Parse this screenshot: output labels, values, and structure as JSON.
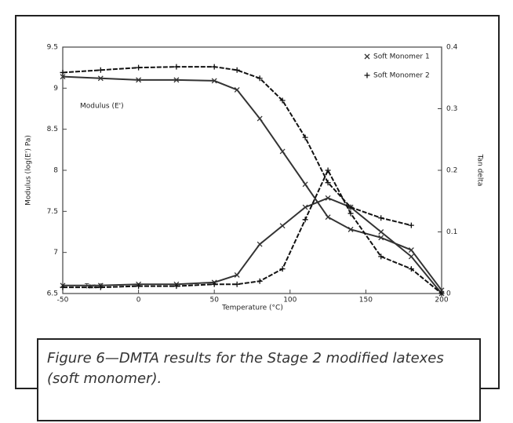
{
  "chart_data": {
    "type": "line",
    "x_label": "Temperature (°C)",
    "y_label": "Modulus (log(E') Pa)",
    "y2_label": "Tan delta",
    "annotations": [
      "Modulus (E')",
      "Tan δ"
    ],
    "caption": "Figure 6—DMTA results for the Stage 2 modified latexes (soft monomer).",
    "x": [
      -50,
      -25,
      0,
      25,
      50,
      65,
      80,
      95,
      110,
      125,
      140,
      160,
      180,
      200
    ],
    "xlim": [
      -50,
      200
    ],
    "xticks": [
      -50,
      0,
      50,
      100,
      150,
      200
    ],
    "ylim": [
      6.5,
      9.5
    ],
    "yticks": [
      6.5,
      7,
      7.5,
      8,
      8.5,
      9,
      9.5
    ],
    "y2lim": [
      0,
      0.4
    ],
    "y2ticks": [
      0,
      0.1,
      0.2,
      0.3,
      0.4
    ],
    "legend": "top-right",
    "series": [
      {
        "name": "Soft Monomer 1",
        "color": "#333333",
        "marker": "x",
        "values": [
          9.14,
          9.12,
          9.1,
          9.1,
          9.09,
          8.98,
          8.63,
          8.23,
          7.83,
          7.43,
          7.28,
          7.18,
          7.03,
          6.54
        ],
        "tan_delta": [
          0.013,
          0.013,
          0.015,
          0.015,
          0.018,
          0.03,
          0.08,
          0.11,
          0.14,
          0.155,
          0.14,
          0.1,
          0.06,
          0.0
        ]
      },
      {
        "name": "Soft Monomer 2",
        "color": "#111111",
        "marker": "+",
        "values": [
          9.19,
          9.22,
          9.25,
          9.26,
          9.26,
          9.22,
          9.12,
          8.85,
          8.4,
          7.85,
          7.55,
          7.42,
          7.33,
          null
        ],
        "tan_delta": [
          0.01,
          0.01,
          0.012,
          0.012,
          0.015,
          0.015,
          0.02,
          0.04,
          0.12,
          0.2,
          0.13,
          0.06,
          0.04,
          0.0
        ]
      }
    ]
  }
}
